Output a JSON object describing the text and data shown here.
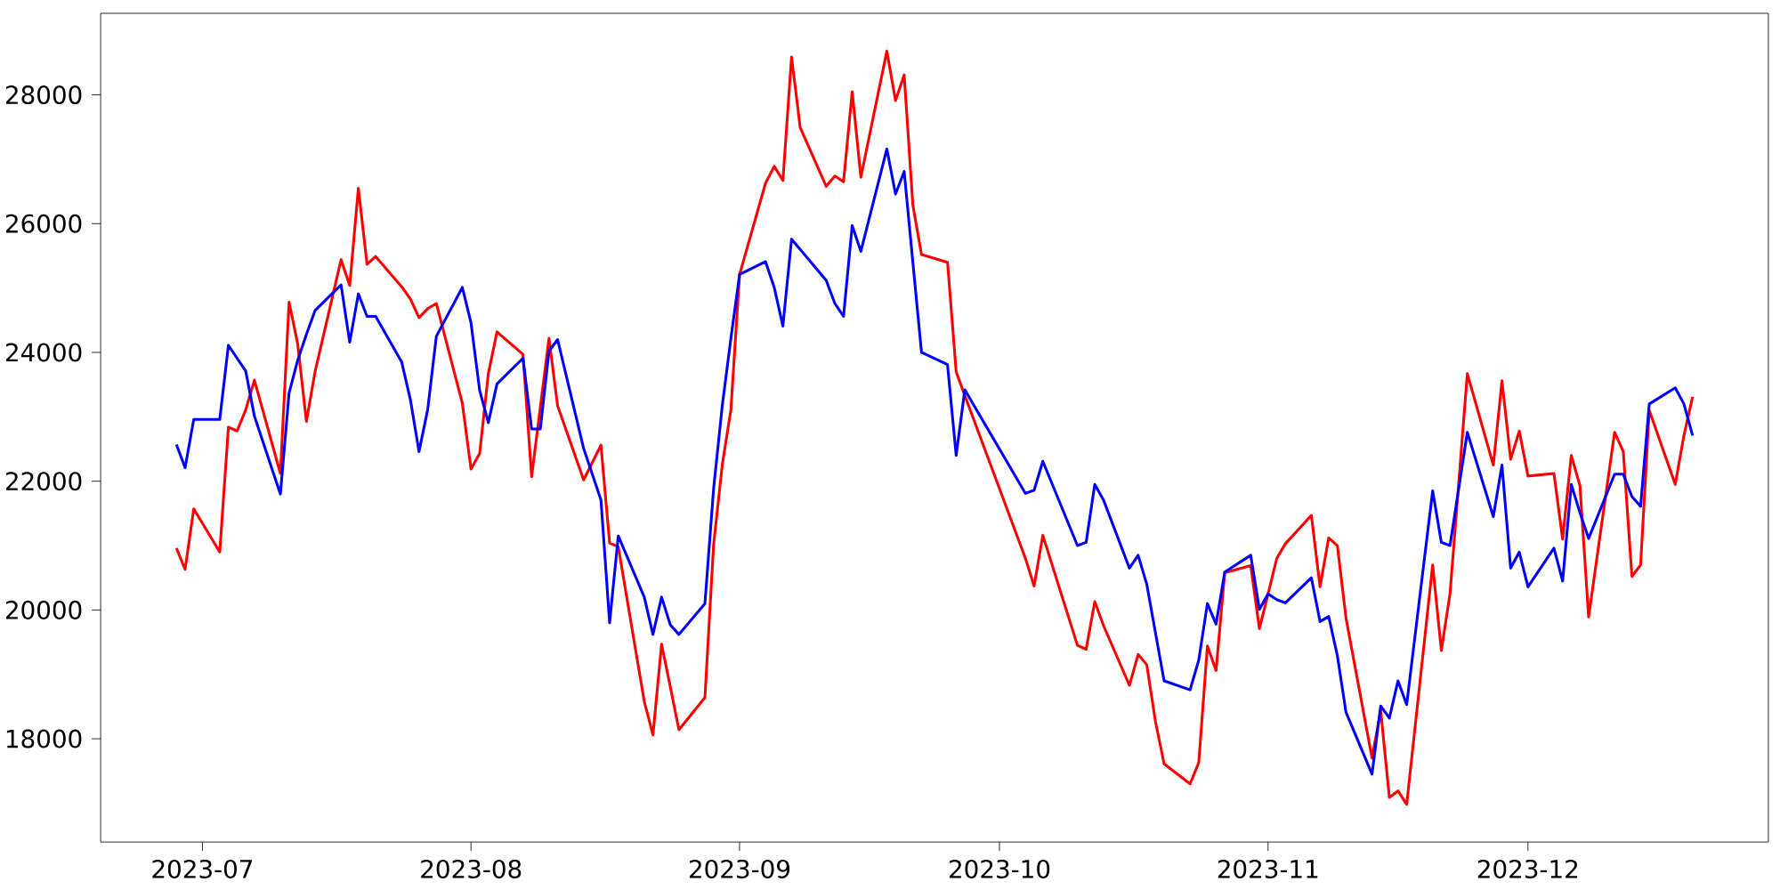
{
  "chart_data": {
    "type": "line",
    "x": [
      "2023-06-28",
      "2023-06-29",
      "2023-06-30",
      "2023-07-03",
      "2023-07-04",
      "2023-07-05",
      "2023-07-06",
      "2023-07-07",
      "2023-07-10",
      "2023-07-11",
      "2023-07-12",
      "2023-07-13",
      "2023-07-14",
      "2023-07-17",
      "2023-07-18",
      "2023-07-19",
      "2023-07-20",
      "2023-07-21",
      "2023-07-24",
      "2023-07-25",
      "2023-07-26",
      "2023-07-27",
      "2023-07-28",
      "2023-07-31",
      "2023-08-01",
      "2023-08-02",
      "2023-08-03",
      "2023-08-04",
      "2023-08-07",
      "2023-08-08",
      "2023-08-09",
      "2023-08-10",
      "2023-08-11",
      "2023-08-14",
      "2023-08-15",
      "2023-08-16",
      "2023-08-17",
      "2023-08-18",
      "2023-08-21",
      "2023-08-22",
      "2023-08-23",
      "2023-08-24",
      "2023-08-25",
      "2023-08-28",
      "2023-08-29",
      "2023-08-30",
      "2023-08-31",
      "2023-09-01",
      "2023-09-04",
      "2023-09-05",
      "2023-09-06",
      "2023-09-07",
      "2023-09-08",
      "2023-09-11",
      "2023-09-12",
      "2023-09-13",
      "2023-09-14",
      "2023-09-15",
      "2023-09-18",
      "2023-09-19",
      "2023-09-20",
      "2023-09-21",
      "2023-09-22",
      "2023-09-25",
      "2023-09-26",
      "2023-09-27",
      "2023-10-04",
      "2023-10-05",
      "2023-10-06",
      "2023-10-10",
      "2023-10-11",
      "2023-10-12",
      "2023-10-13",
      "2023-10-16",
      "2023-10-17",
      "2023-10-18",
      "2023-10-19",
      "2023-10-20",
      "2023-10-23",
      "2023-10-24",
      "2023-10-25",
      "2023-10-26",
      "2023-10-27",
      "2023-10-30",
      "2023-10-31",
      "2023-11-01",
      "2023-11-02",
      "2023-11-03",
      "2023-11-06",
      "2023-11-07",
      "2023-11-08",
      "2023-11-09",
      "2023-11-10",
      "2023-11-13",
      "2023-11-14",
      "2023-11-15",
      "2023-11-16",
      "2023-11-17",
      "2023-11-20",
      "2023-11-21",
      "2023-11-22",
      "2023-11-24",
      "2023-11-27",
      "2023-11-28",
      "2023-11-29",
      "2023-11-30",
      "2023-12-01",
      "2023-12-04",
      "2023-12-05",
      "2023-12-06",
      "2023-12-07",
      "2023-12-08",
      "2023-12-11",
      "2023-12-12",
      "2023-12-13",
      "2023-12-14",
      "2023-12-15",
      "2023-12-18",
      "2023-12-19",
      "2023-12-20"
    ],
    "series": [
      {
        "color": "#ff0000",
        "values": [
          20960,
          20630,
          21570,
          20900,
          22840,
          22780,
          23110,
          23570,
          22120,
          24780,
          24130,
          22930,
          23700,
          25440,
          25040,
          26550,
          25370,
          25490,
          25020,
          24830,
          24540,
          24680,
          24760,
          23210,
          22190,
          22430,
          23670,
          24320,
          23970,
          22070,
          23150,
          24220,
          23170,
          22020,
          22290,
          22560,
          21040,
          20980,
          18580,
          18060,
          19470,
          18810,
          18140,
          18640,
          21010,
          22250,
          23110,
          25210,
          26630,
          26890,
          26670,
          28590,
          27490,
          26580,
          26740,
          26650,
          28050,
          26720,
          28680,
          27910,
          28310,
          26290,
          25520,
          25400,
          23700,
          23330,
          20800,
          20370,
          21160,
          19450,
          19390,
          20130,
          19760,
          18830,
          19310,
          19150,
          18270,
          17610,
          17300,
          17630,
          19440,
          19060,
          20580,
          20690,
          19710,
          20250,
          20800,
          21030,
          21470,
          20360,
          21120,
          21000,
          19870,
          17700,
          18440,
          17090,
          17190,
          16980,
          20700,
          19370,
          20250,
          23670,
          22250,
          23560,
          22340,
          22780,
          22080,
          22120,
          21100,
          22400,
          21930,
          19890,
          22760,
          22460,
          20520,
          20700,
          23100,
          21950,
          22710,
          23310
        ]
      },
      {
        "color": "#0000ff",
        "values": [
          22570,
          22210,
          22960,
          22960,
          24110,
          23910,
          23710,
          23010,
          21800,
          23370,
          23880,
          24280,
          24650,
          25050,
          24160,
          24910,
          24560,
          24560,
          23850,
          23270,
          22460,
          23110,
          24250,
          25010,
          24460,
          23410,
          22910,
          23510,
          23910,
          22810,
          22810,
          24020,
          24200,
          22510,
          22110,
          21710,
          19800,
          21150,
          20200,
          19620,
          20200,
          19770,
          19620,
          20100,
          21880,
          23170,
          24220,
          25210,
          25410,
          25010,
          24410,
          25760,
          25600,
          25120,
          24760,
          24560,
          25970,
          25570,
          27160,
          26460,
          26810,
          25400,
          24000,
          23810,
          22400,
          23420,
          21810,
          21860,
          22310,
          21000,
          21050,
          21950,
          21710,
          20650,
          20850,
          20400,
          19650,
          18900,
          18760,
          19220,
          20100,
          19780,
          20590,
          20850,
          20010,
          20250,
          20160,
          20110,
          20500,
          19820,
          19900,
          19290,
          18410,
          17450,
          18510,
          18320,
          18900,
          18530,
          21850,
          21050,
          21000,
          22760,
          21450,
          22250,
          20650,
          20900,
          20360,
          20960,
          20450,
          21950,
          21510,
          21110,
          22110,
          22110,
          21760,
          21610,
          23200,
          23450,
          23200,
          22710
        ]
      }
    ],
    "xlim": [
      "2023-06-19T06:00",
      "2023-12-28T18:00"
    ],
    "ylim": [
      16396,
      29266
    ],
    "xticks": [
      {
        "value": "2023-07-01",
        "label": "2023-07"
      },
      {
        "value": "2023-08-01",
        "label": "2023-08"
      },
      {
        "value": "2023-09-01",
        "label": "2023-09"
      },
      {
        "value": "2023-10-01",
        "label": "2023-10"
      },
      {
        "value": "2023-11-01",
        "label": "2023-11"
      },
      {
        "value": "2023-12-01",
        "label": "2023-12"
      }
    ],
    "yticks": [
      18000,
      20000,
      22000,
      24000,
      26000,
      28000
    ]
  }
}
